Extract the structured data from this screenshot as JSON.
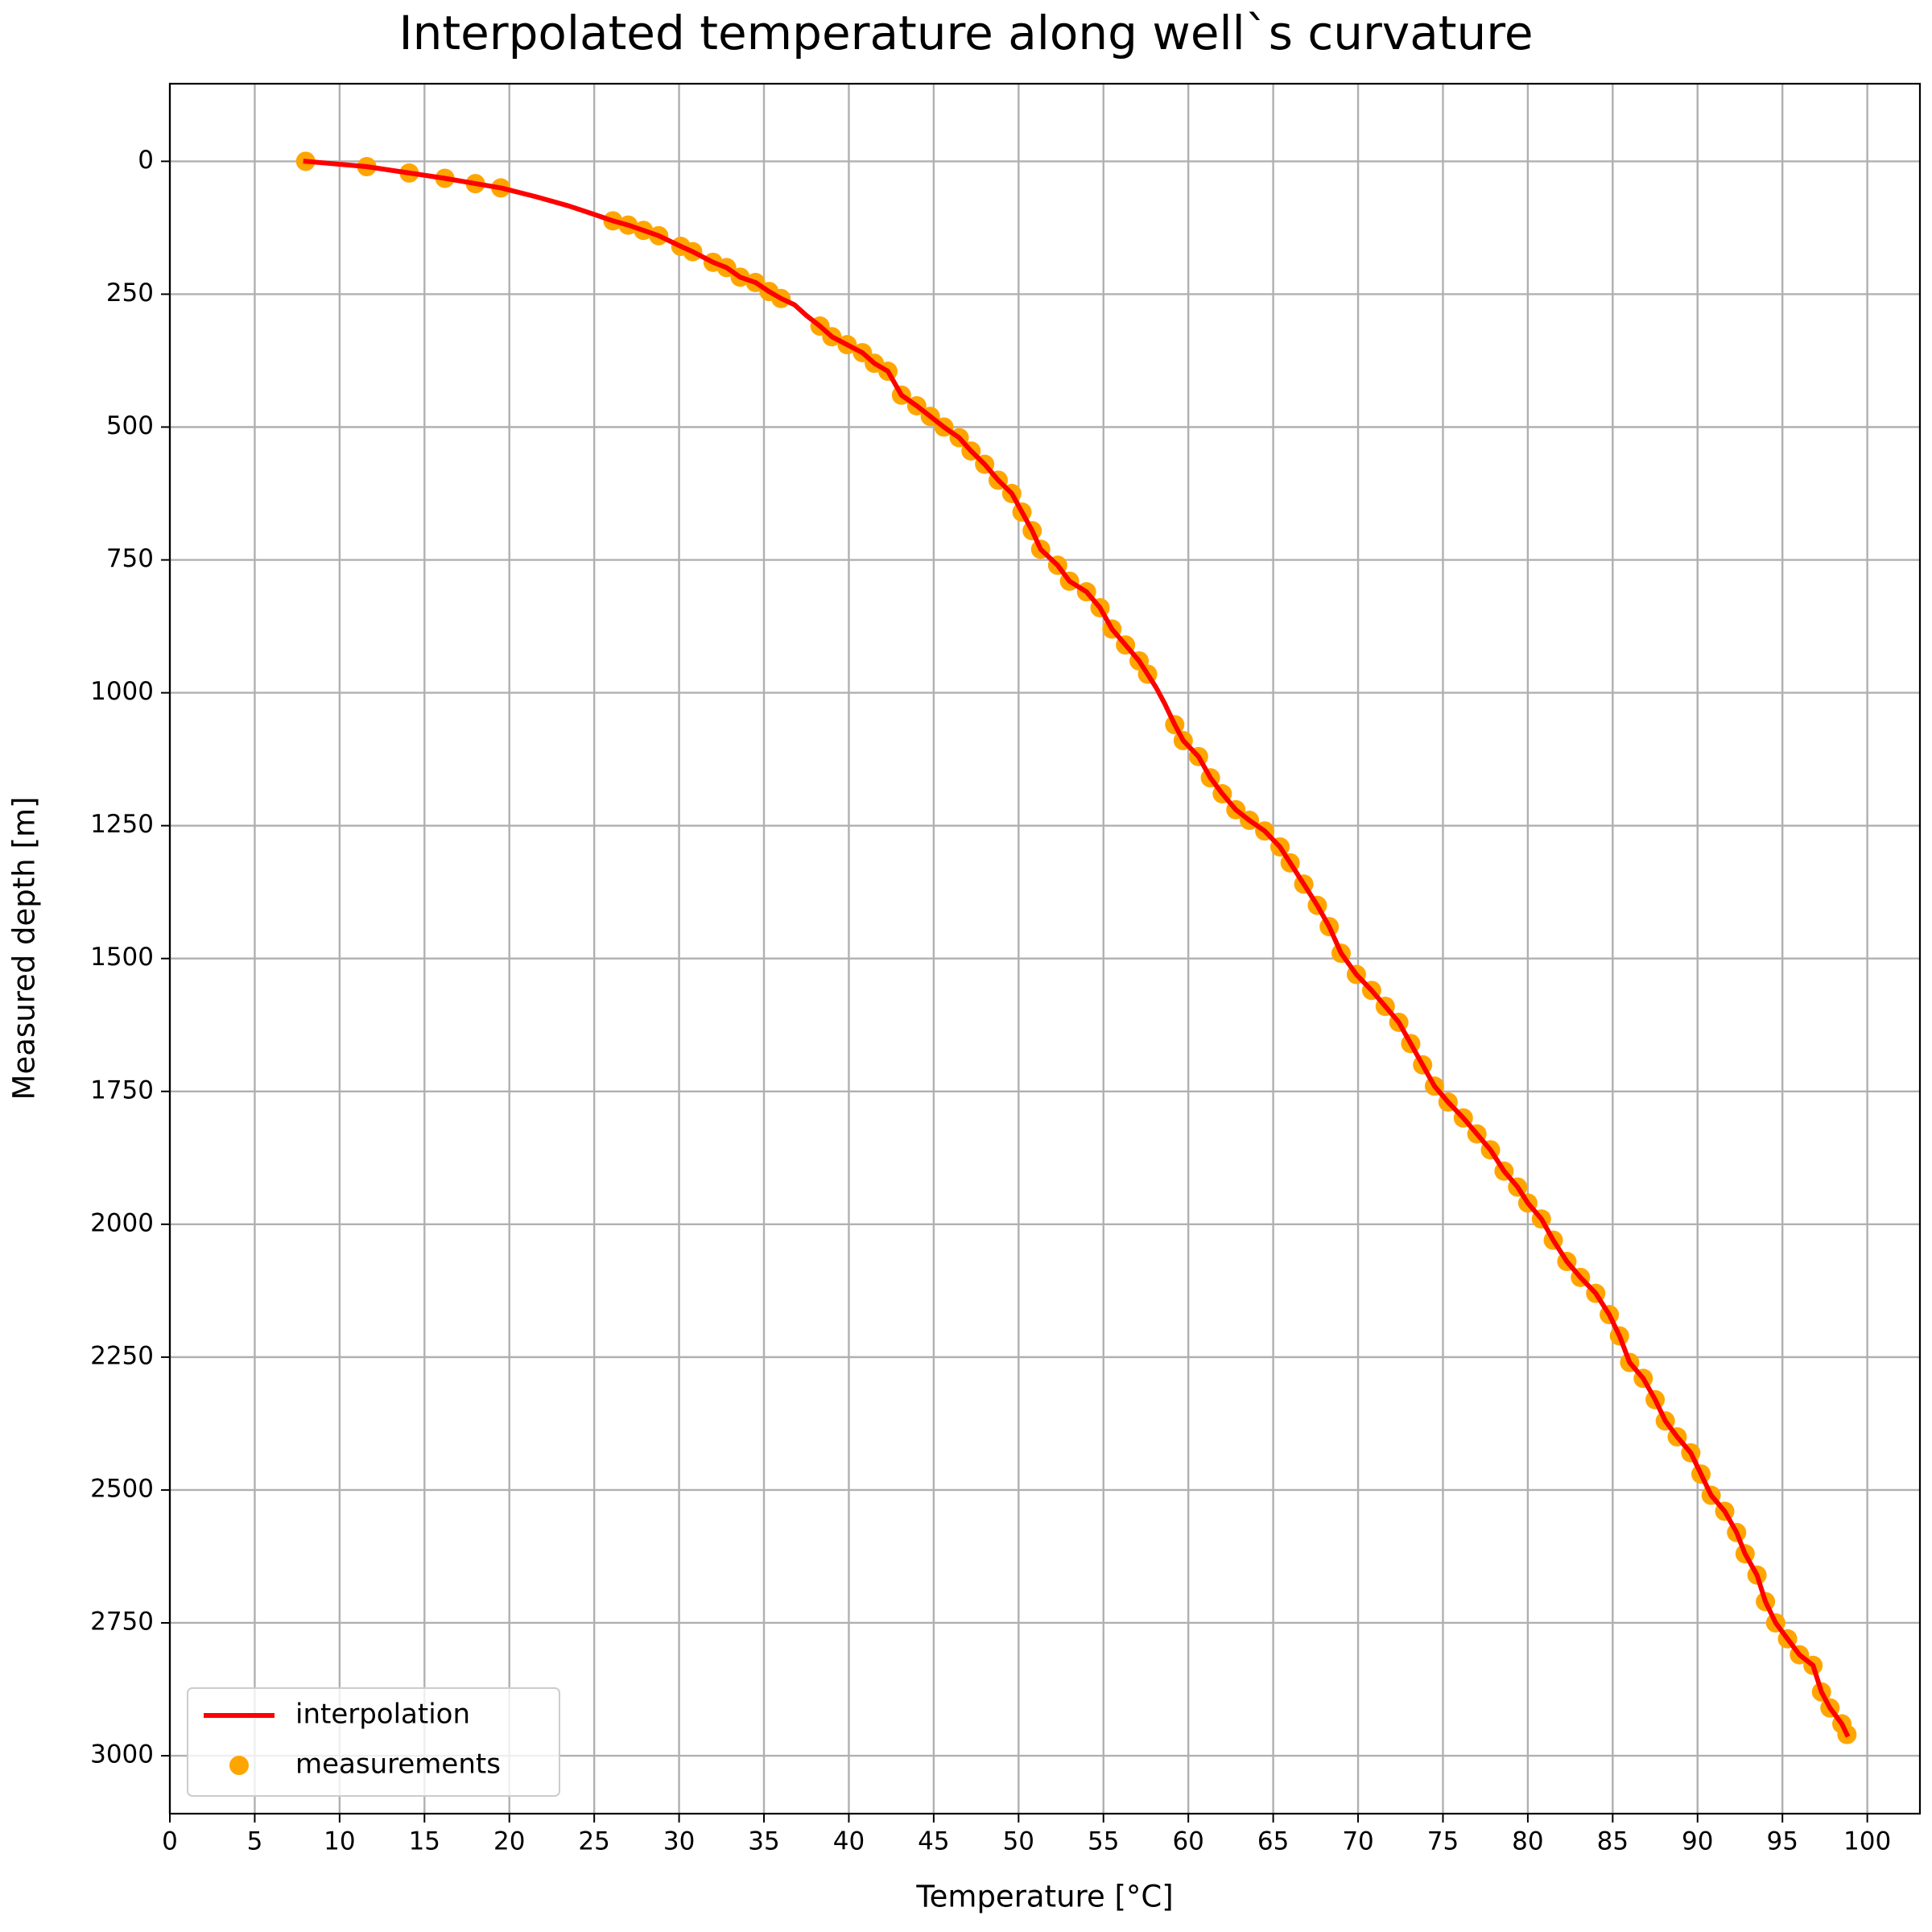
{
  "chart_data": {
    "type": "line",
    "title": "Interpolated temperature along well`s curvature",
    "xlabel": "Temperature [°C]",
    "ylabel": "Measured depth [m]",
    "xlim": [
      0,
      103.1
    ],
    "ylim": [
      -146,
      3109
    ],
    "y_inverted": true,
    "xticks": [
      0,
      5,
      10,
      15,
      20,
      25,
      30,
      35,
      40,
      45,
      50,
      55,
      60,
      65,
      70,
      75,
      80,
      85,
      90,
      95,
      100
    ],
    "yticks": [
      0,
      250,
      500,
      750,
      1000,
      1250,
      1500,
      1750,
      2000,
      2250,
      2500,
      2750,
      3000
    ],
    "grid": true,
    "legend": "lower left",
    "series": [
      {
        "name": "interpolation",
        "type": "line",
        "color": "#ff0000",
        "x": [
          8,
          11.6,
          14.1,
          16.2,
          18,
          19.5,
          21.5,
          23.5,
          25,
          26.1,
          27,
          27.9,
          28.8,
          30.1,
          30.8,
          32,
          32.8,
          33.6,
          34.5,
          35.3,
          36,
          36.8,
          37.5,
          38.3,
          39,
          39.9,
          40.8,
          41.5,
          42.3,
          43.1,
          44,
          44.8,
          45.6,
          46.5,
          47.2,
          48,
          48.8,
          49.6,
          50.2,
          50.8,
          51.3,
          52.3,
          53,
          54,
          54.8,
          55.5,
          56.3,
          57.1,
          57.6,
          58.1,
          58.6,
          59.2,
          59.7,
          60.6,
          61.3,
          62,
          62.8,
          63.6,
          64.5,
          65.4,
          66,
          66.8,
          67.6,
          68.3,
          69,
          69.9,
          70.8,
          71.6,
          72.4,
          73.1,
          73.8,
          74.5,
          75.3,
          76.2,
          77,
          77.8,
          78.6,
          79.4,
          80,
          80.8,
          81.5,
          82.3,
          83.1,
          84,
          84.8,
          85.4,
          86,
          86.8,
          87.5,
          88.1,
          88.8,
          89.6,
          90.2,
          90.8,
          91.6,
          92.3,
          92.8,
          93.5,
          94,
          94.6,
          95.3,
          96,
          96.8,
          97.3,
          97.8,
          98.5,
          98.8
        ],
        "values": [
          0,
          10,
          22,
          32,
          42,
          50,
          66,
          84,
          100,
          112,
          120,
          130,
          140,
          160,
          170,
          190,
          200,
          218,
          228,
          245,
          258,
          270,
          290,
          310,
          330,
          345,
          360,
          380,
          395,
          440,
          460,
          480,
          500,
          520,
          545,
          570,
          600,
          625,
          660,
          695,
          730,
          760,
          790,
          810,
          840,
          880,
          910,
          940,
          965,
          990,
          1020,
          1060,
          1090,
          1120,
          1160,
          1190,
          1220,
          1240,
          1260,
          1290,
          1320,
          1360,
          1400,
          1440,
          1490,
          1530,
          1560,
          1590,
          1620,
          1660,
          1700,
          1740,
          1770,
          1800,
          1830,
          1860,
          1900,
          1930,
          1960,
          1990,
          2030,
          2070,
          2100,
          2130,
          2170,
          2210,
          2260,
          2290,
          2330,
          2370,
          2400,
          2430,
          2470,
          2510,
          2540,
          2580,
          2620,
          2660,
          2710,
          2750,
          2780,
          2810,
          2830,
          2880,
          2910,
          2940,
          2960
        ]
      },
      {
        "name": "measurements",
        "type": "scatter",
        "color": "#ffa500",
        "x": [
          8,
          11.6,
          14.1,
          16.2,
          18,
          19.5,
          26.1,
          27,
          27.9,
          28.8,
          30.1,
          30.8,
          32,
          32.8,
          33.6,
          34.5,
          35.3,
          36,
          38.3,
          39,
          39.9,
          40.8,
          41.5,
          42.3,
          43.1,
          44,
          44.8,
          45.6,
          46.5,
          47.2,
          48,
          48.8,
          49.6,
          50.2,
          50.8,
          51.3,
          52.3,
          53,
          54,
          54.8,
          55.5,
          56.3,
          57.1,
          57.6,
          59.2,
          59.7,
          60.6,
          61.3,
          62,
          62.8,
          63.6,
          64.5,
          65.4,
          66,
          66.8,
          67.6,
          68.3,
          69,
          69.9,
          70.8,
          71.6,
          72.4,
          73.1,
          73.8,
          74.5,
          75.3,
          76.2,
          77,
          77.8,
          78.6,
          79.4,
          80,
          80.8,
          81.5,
          82.3,
          83.1,
          84,
          84.8,
          85.4,
          86,
          86.8,
          87.5,
          88.1,
          88.8,
          89.6,
          90.2,
          90.8,
          91.6,
          92.3,
          92.8,
          93.5,
          94,
          94.6,
          95.3,
          96,
          96.8,
          97.3,
          97.8,
          98.5,
          98.8
        ],
        "values": [
          0,
          10,
          22,
          32,
          42,
          50,
          112,
          120,
          130,
          140,
          160,
          170,
          190,
          200,
          218,
          228,
          245,
          258,
          310,
          330,
          345,
          360,
          380,
          395,
          440,
          460,
          480,
          500,
          520,
          545,
          570,
          600,
          625,
          660,
          695,
          730,
          760,
          790,
          810,
          840,
          880,
          910,
          940,
          965,
          1060,
          1090,
          1120,
          1160,
          1190,
          1220,
          1240,
          1260,
          1290,
          1320,
          1360,
          1400,
          1440,
          1490,
          1530,
          1560,
          1590,
          1620,
          1660,
          1700,
          1740,
          1770,
          1800,
          1830,
          1860,
          1900,
          1930,
          1960,
          1990,
          2030,
          2070,
          2100,
          2130,
          2170,
          2210,
          2260,
          2290,
          2330,
          2370,
          2400,
          2430,
          2470,
          2510,
          2540,
          2580,
          2620,
          2660,
          2710,
          2750,
          2780,
          2810,
          2830,
          2880,
          2910,
          2940,
          2960
        ]
      }
    ]
  }
}
